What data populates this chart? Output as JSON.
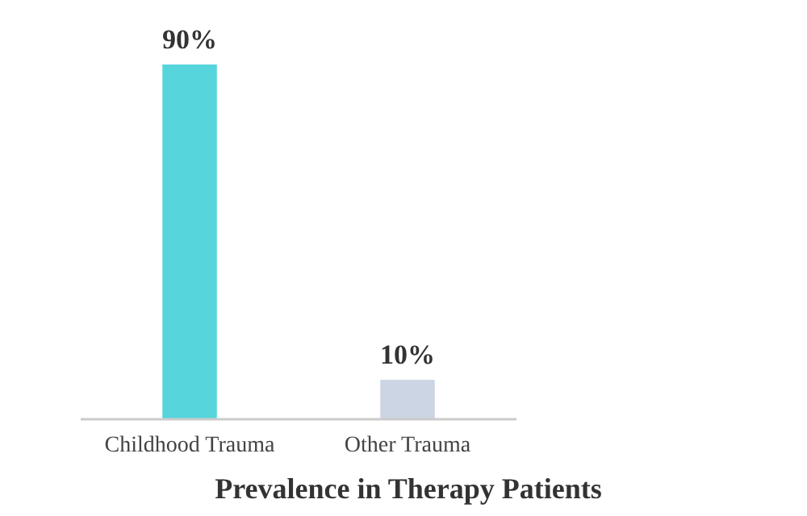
{
  "chart_data": {
    "type": "bar",
    "xlabel": "Prevalence in Therapy Patients",
    "categories": [
      "Childhood Trauma",
      "Other Trauma"
    ],
    "values": [
      90,
      10
    ],
    "colors": [
      "#56d5dc",
      "#cbd5e3"
    ],
    "value_labels": [
      "90%",
      "10%"
    ]
  }
}
